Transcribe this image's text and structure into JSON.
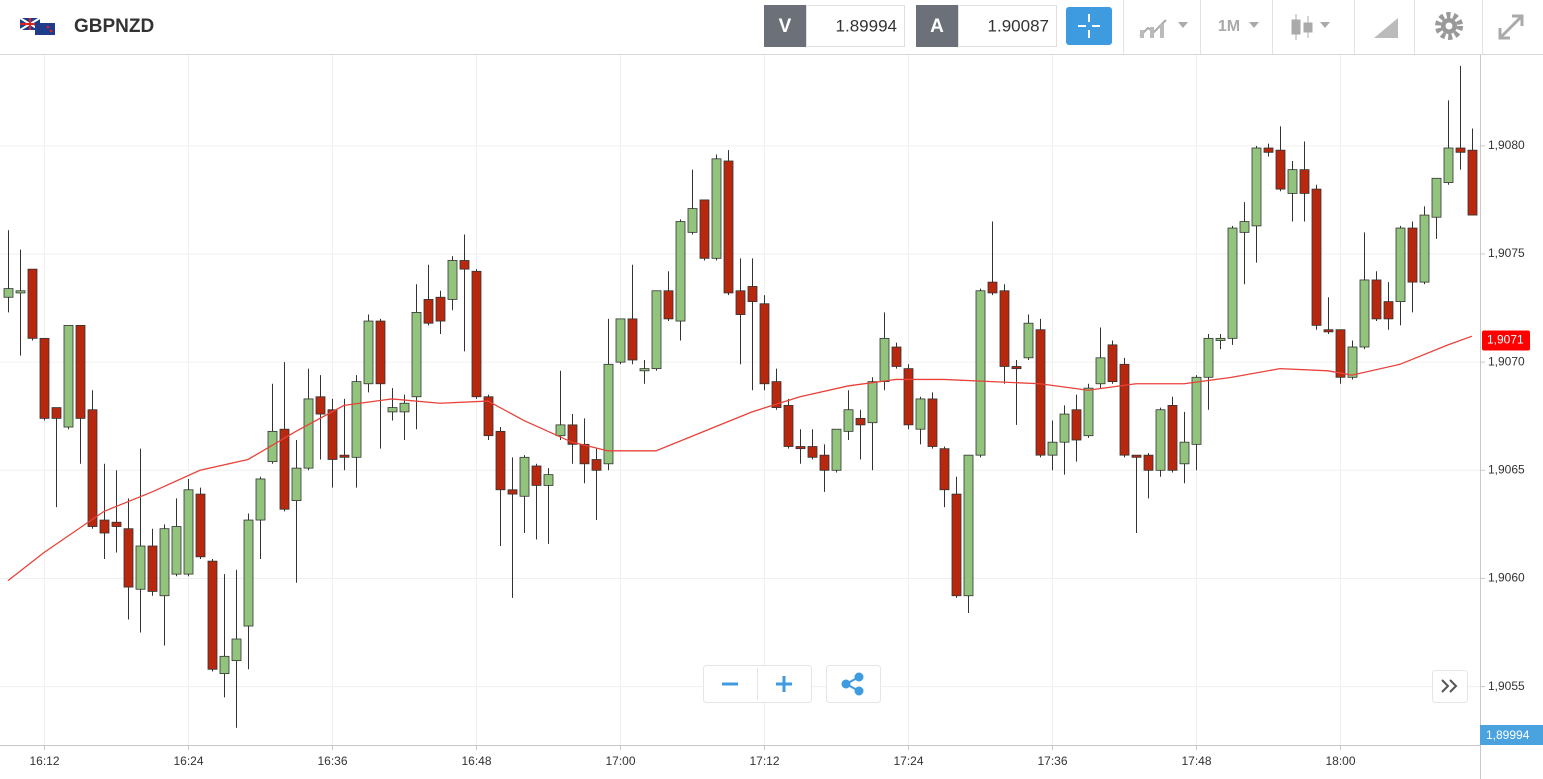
{
  "header": {
    "symbol": "GBPNZD",
    "bid_letter": "V",
    "bid": "1.89994",
    "ask_letter": "A",
    "ask": "1.90087",
    "timeframe": "1M"
  },
  "chart_data": {
    "type": "candlestick",
    "categories": [
      null,
      null,
      null,
      "16:12",
      null,
      null,
      null,
      null,
      null,
      null,
      null,
      null,
      null,
      null,
      null,
      "16:24",
      null,
      null,
      null,
      null,
      null,
      null,
      null,
      null,
      null,
      null,
      null,
      "16:36",
      null,
      null,
      null,
      null,
      null,
      null,
      null,
      null,
      null,
      null,
      null,
      "16:48",
      null,
      null,
      null,
      null,
      null,
      null,
      null,
      null,
      null,
      null,
      null,
      "17:00",
      null,
      null,
      null,
      null,
      null,
      null,
      null,
      null,
      null,
      null,
      null,
      "17:12",
      null,
      null,
      null,
      null,
      null,
      null,
      null,
      null,
      null,
      null,
      null,
      "17:24",
      null,
      null,
      null,
      null,
      null,
      null,
      null,
      null,
      null,
      null,
      null,
      "17:36",
      null,
      null,
      null,
      null,
      null,
      null,
      null,
      null,
      null,
      null,
      null,
      "17:48",
      null,
      null,
      null,
      null,
      null,
      null,
      null,
      null,
      null,
      null,
      null,
      "18:00",
      null,
      null,
      null,
      null,
      null,
      null,
      null,
      null,
      null,
      null,
      null
    ],
    "open": [
      1.9073,
      1.90732,
      1.90743,
      1.90711,
      1.90679,
      1.9067,
      1.90717,
      1.90678,
      1.90627,
      1.90626,
      1.90623,
      1.90595,
      1.90615,
      1.90592,
      1.90602,
      1.90602,
      1.90639,
      1.90608,
      1.90556,
      1.90562,
      1.90578,
      1.90627,
      1.90654,
      1.90669,
      1.90636,
      1.90651,
      1.90684,
      1.90678,
      1.90657,
      1.90656,
      1.9069,
      1.90719,
      1.90677,
      1.90677,
      1.90684,
      1.90729,
      1.9073,
      1.90729,
      1.90747,
      1.90742,
      1.90684,
      1.90668,
      1.90641,
      1.90638,
      1.90652,
      1.90643,
      1.90666,
      1.90671,
      1.90662,
      1.90655,
      1.90653,
      1.907,
      1.9072,
      1.90696,
      1.90697,
      1.90733,
      1.90719,
      1.9076,
      1.90775,
      1.90748,
      1.90793,
      1.90733,
      1.90735,
      1.90727,
      1.90691,
      1.9068,
      1.90661,
      1.90661,
      1.90657,
      1.9065,
      1.90668,
      1.90674,
      1.90672,
      1.90691,
      1.90707,
      1.90697,
      1.90669,
      1.90683,
      1.9066,
      1.90639,
      1.90592,
      1.90657,
      1.90737,
      1.90733,
      1.90698,
      1.90702,
      1.90715,
      1.90657,
      1.90663,
      1.90678,
      1.90666,
      1.9069,
      1.90708,
      1.90699,
      1.90657,
      1.90657,
      1.9065,
      1.9068,
      1.90653,
      1.90662,
      1.90693,
      1.9071,
      1.90711,
      1.9076,
      1.90763,
      1.90799,
      1.90798,
      1.90778,
      1.90789,
      1.9078,
      1.90715,
      1.90715,
      1.90693,
      1.90707,
      1.90738,
      1.90728,
      1.90728,
      1.90762,
      1.90737,
      1.90767,
      1.90783,
      1.90799,
      1.90798
    ],
    "high": [
      1.90761,
      1.90752,
      1.90743,
      1.90711,
      1.90679,
      1.90717,
      1.90717,
      1.90687,
      1.90653,
      1.9065,
      1.90637,
      1.9066,
      1.90623,
      1.90625,
      1.90637,
      1.90646,
      1.90642,
      1.90609,
      1.90602,
      1.90604,
      1.9063,
      1.90647,
      1.9069,
      1.907,
      1.90664,
      1.90697,
      1.90694,
      1.90683,
      1.90683,
      1.90694,
      1.90722,
      1.9072,
      1.90688,
      1.90685,
      1.90736,
      1.90745,
      1.90733,
      1.90749,
      1.90759,
      1.90743,
      1.90685,
      1.9067,
      1.90656,
      1.90657,
      1.90653,
      1.90651,
      1.90696,
      1.90676,
      1.90674,
      1.9066,
      1.9072,
      1.9072,
      1.90745,
      1.90701,
      1.90733,
      1.90742,
      1.90766,
      1.90789,
      1.90775,
      1.90796,
      1.90798,
      1.90748,
      1.90748,
      1.90731,
      1.90697,
      1.90683,
      1.90669,
      1.90669,
      1.90662,
      1.90669,
      1.90687,
      1.90678,
      1.90693,
      1.90723,
      1.90709,
      1.90699,
      1.90684,
      1.90686,
      1.90661,
      1.90647,
      1.90657,
      1.90734,
      1.90765,
      1.90736,
      1.90701,
      1.90722,
      1.9072,
      1.90673,
      1.9068,
      1.90685,
      1.9069,
      1.90716,
      1.9071,
      1.90702,
      1.90657,
      1.90658,
      1.90679,
      1.90684,
      1.90677,
      1.90694,
      1.90713,
      1.90713,
      1.90763,
      1.90774,
      1.908,
      1.90801,
      1.90809,
      1.90793,
      1.90802,
      1.90782,
      1.9073,
      1.90715,
      1.9071,
      1.9076,
      1.90742,
      1.90737,
      1.90763,
      1.90765,
      1.90772,
      1.90785,
      1.90821,
      1.90837,
      1.90808
    ],
    "low": [
      1.90723,
      1.90703,
      1.9071,
      1.90673,
      1.90633,
      1.90669,
      1.90653,
      1.90623,
      1.90609,
      1.90612,
      1.90581,
      1.90575,
      1.90592,
      1.90569,
      1.90601,
      1.90601,
      1.90609,
      1.90557,
      1.90545,
      1.90531,
      1.90558,
      1.90609,
      1.90653,
      1.90631,
      1.90598,
      1.9065,
      1.90655,
      1.90642,
      1.9065,
      1.90642,
      1.90686,
      1.9066,
      1.90673,
      1.90664,
      1.90669,
      1.90717,
      1.90713,
      1.90724,
      1.90705,
      1.90683,
      1.90664,
      1.90615,
      1.90591,
      1.90621,
      1.90618,
      1.90616,
      1.90664,
      1.90653,
      1.90644,
      1.90627,
      1.9065,
      1.90699,
      1.90699,
      1.9069,
      1.90696,
      1.90719,
      1.9071,
      1.90759,
      1.90747,
      1.90747,
      1.90731,
      1.90699,
      1.90687,
      1.90687,
      1.90678,
      1.9066,
      1.90653,
      1.90655,
      1.9064,
      1.90649,
      1.90664,
      1.90655,
      1.9065,
      1.90687,
      1.90697,
      1.90669,
      1.90662,
      1.9066,
      1.90633,
      1.90591,
      1.90584,
      1.90656,
      1.90731,
      1.9069,
      1.90671,
      1.90701,
      1.90656,
      1.9065,
      1.90648,
      1.90654,
      1.90665,
      1.90688,
      1.9069,
      1.90656,
      1.90621,
      1.90637,
      1.90647,
      1.90649,
      1.90644,
      1.9065,
      1.90678,
      1.90706,
      1.90708,
      1.90736,
      1.90746,
      1.90795,
      1.90779,
      1.90765,
      1.90765,
      1.90715,
      1.90713,
      1.9069,
      1.90692,
      1.90706,
      1.90719,
      1.90715,
      1.90717,
      1.90723,
      1.90736,
      1.90757,
      1.90782,
      1.90789,
      1.90768
    ],
    "close": [
      1.90734,
      1.90733,
      1.90711,
      1.90674,
      1.90674,
      1.90717,
      1.90674,
      1.90624,
      1.90621,
      1.90624,
      1.90596,
      1.90615,
      1.90594,
      1.90623,
      1.90624,
      1.90641,
      1.9061,
      1.90558,
      1.90564,
      1.90572,
      1.90627,
      1.90646,
      1.90668,
      1.90632,
      1.90651,
      1.90683,
      1.90676,
      1.90655,
      1.90656,
      1.90691,
      1.90719,
      1.9069,
      1.90679,
      1.90681,
      1.90723,
      1.90718,
      1.90719,
      1.90747,
      1.90743,
      1.90684,
      1.90666,
      1.90641,
      1.90639,
      1.90656,
      1.90643,
      1.90648,
      1.90671,
      1.90662,
      1.90653,
      1.9065,
      1.90699,
      1.9072,
      1.90701,
      1.90697,
      1.90733,
      1.9072,
      1.90765,
      1.90771,
      1.90748,
      1.90794,
      1.90732,
      1.90722,
      1.90728,
      1.9069,
      1.90679,
      1.90661,
      1.9066,
      1.90656,
      1.9065,
      1.90669,
      1.90678,
      1.90671,
      1.90691,
      1.90711,
      1.90698,
      1.90671,
      1.90683,
      1.90661,
      1.90641,
      1.90592,
      1.90657,
      1.90733,
      1.90732,
      1.90698,
      1.90697,
      1.90718,
      1.90657,
      1.90663,
      1.90676,
      1.90664,
      1.90688,
      1.90702,
      1.90691,
      1.90657,
      1.90656,
      1.9065,
      1.90678,
      1.9065,
      1.90663,
      1.90693,
      1.90711,
      1.90711,
      1.90762,
      1.90765,
      1.90799,
      1.90797,
      1.9078,
      1.90789,
      1.90778,
      1.90717,
      1.90714,
      1.90693,
      1.90707,
      1.90738,
      1.9072,
      1.9072,
      1.90762,
      1.90737,
      1.90768,
      1.90785,
      1.90799,
      1.90797,
      1.90768
    ],
    "up_color": "#93c47d",
    "down_color": "#b7280f",
    "moving_average": {
      "color": "#e8423a",
      "x": [
        0,
        3,
        8,
        12,
        16,
        20,
        24,
        28,
        32,
        36,
        40,
        43,
        47,
        50,
        54,
        58,
        62,
        66,
        70,
        74,
        78,
        82,
        86,
        90,
        94,
        98,
        102,
        106,
        110,
        112,
        116,
        120,
        122
      ],
      "values": [
        1.90599,
        1.90612,
        1.90631,
        1.9064,
        1.9065,
        1.90655,
        1.90668,
        1.9068,
        1.90683,
        1.90681,
        1.90682,
        1.90673,
        1.90663,
        1.90659,
        1.90659,
        1.90668,
        1.90677,
        1.90684,
        1.90689,
        1.90692,
        1.90692,
        1.90691,
        1.9069,
        1.90687,
        1.9069,
        1.9069,
        1.90693,
        1.90697,
        1.90696,
        1.90694,
        1.90699,
        1.90708,
        1.90712
      ]
    },
    "ylim": [
      1.90523,
      1.90842
    ],
    "yticks": [
      {
        "value": 1.9055,
        "label": "1,9055"
      },
      {
        "value": 1.906,
        "label": "1,9060"
      },
      {
        "value": 1.9065,
        "label": "1,9065"
      },
      {
        "value": 1.907,
        "label": "1,9070"
      },
      {
        "value": 1.9075,
        "label": "1,9075"
      },
      {
        "value": 1.908,
        "label": "1,9080"
      }
    ],
    "grid": true,
    "price_marker": {
      "value": 1.9071,
      "label": "1,9071",
      "color": "#ff0000"
    },
    "bid_tag": "1,89994"
  }
}
